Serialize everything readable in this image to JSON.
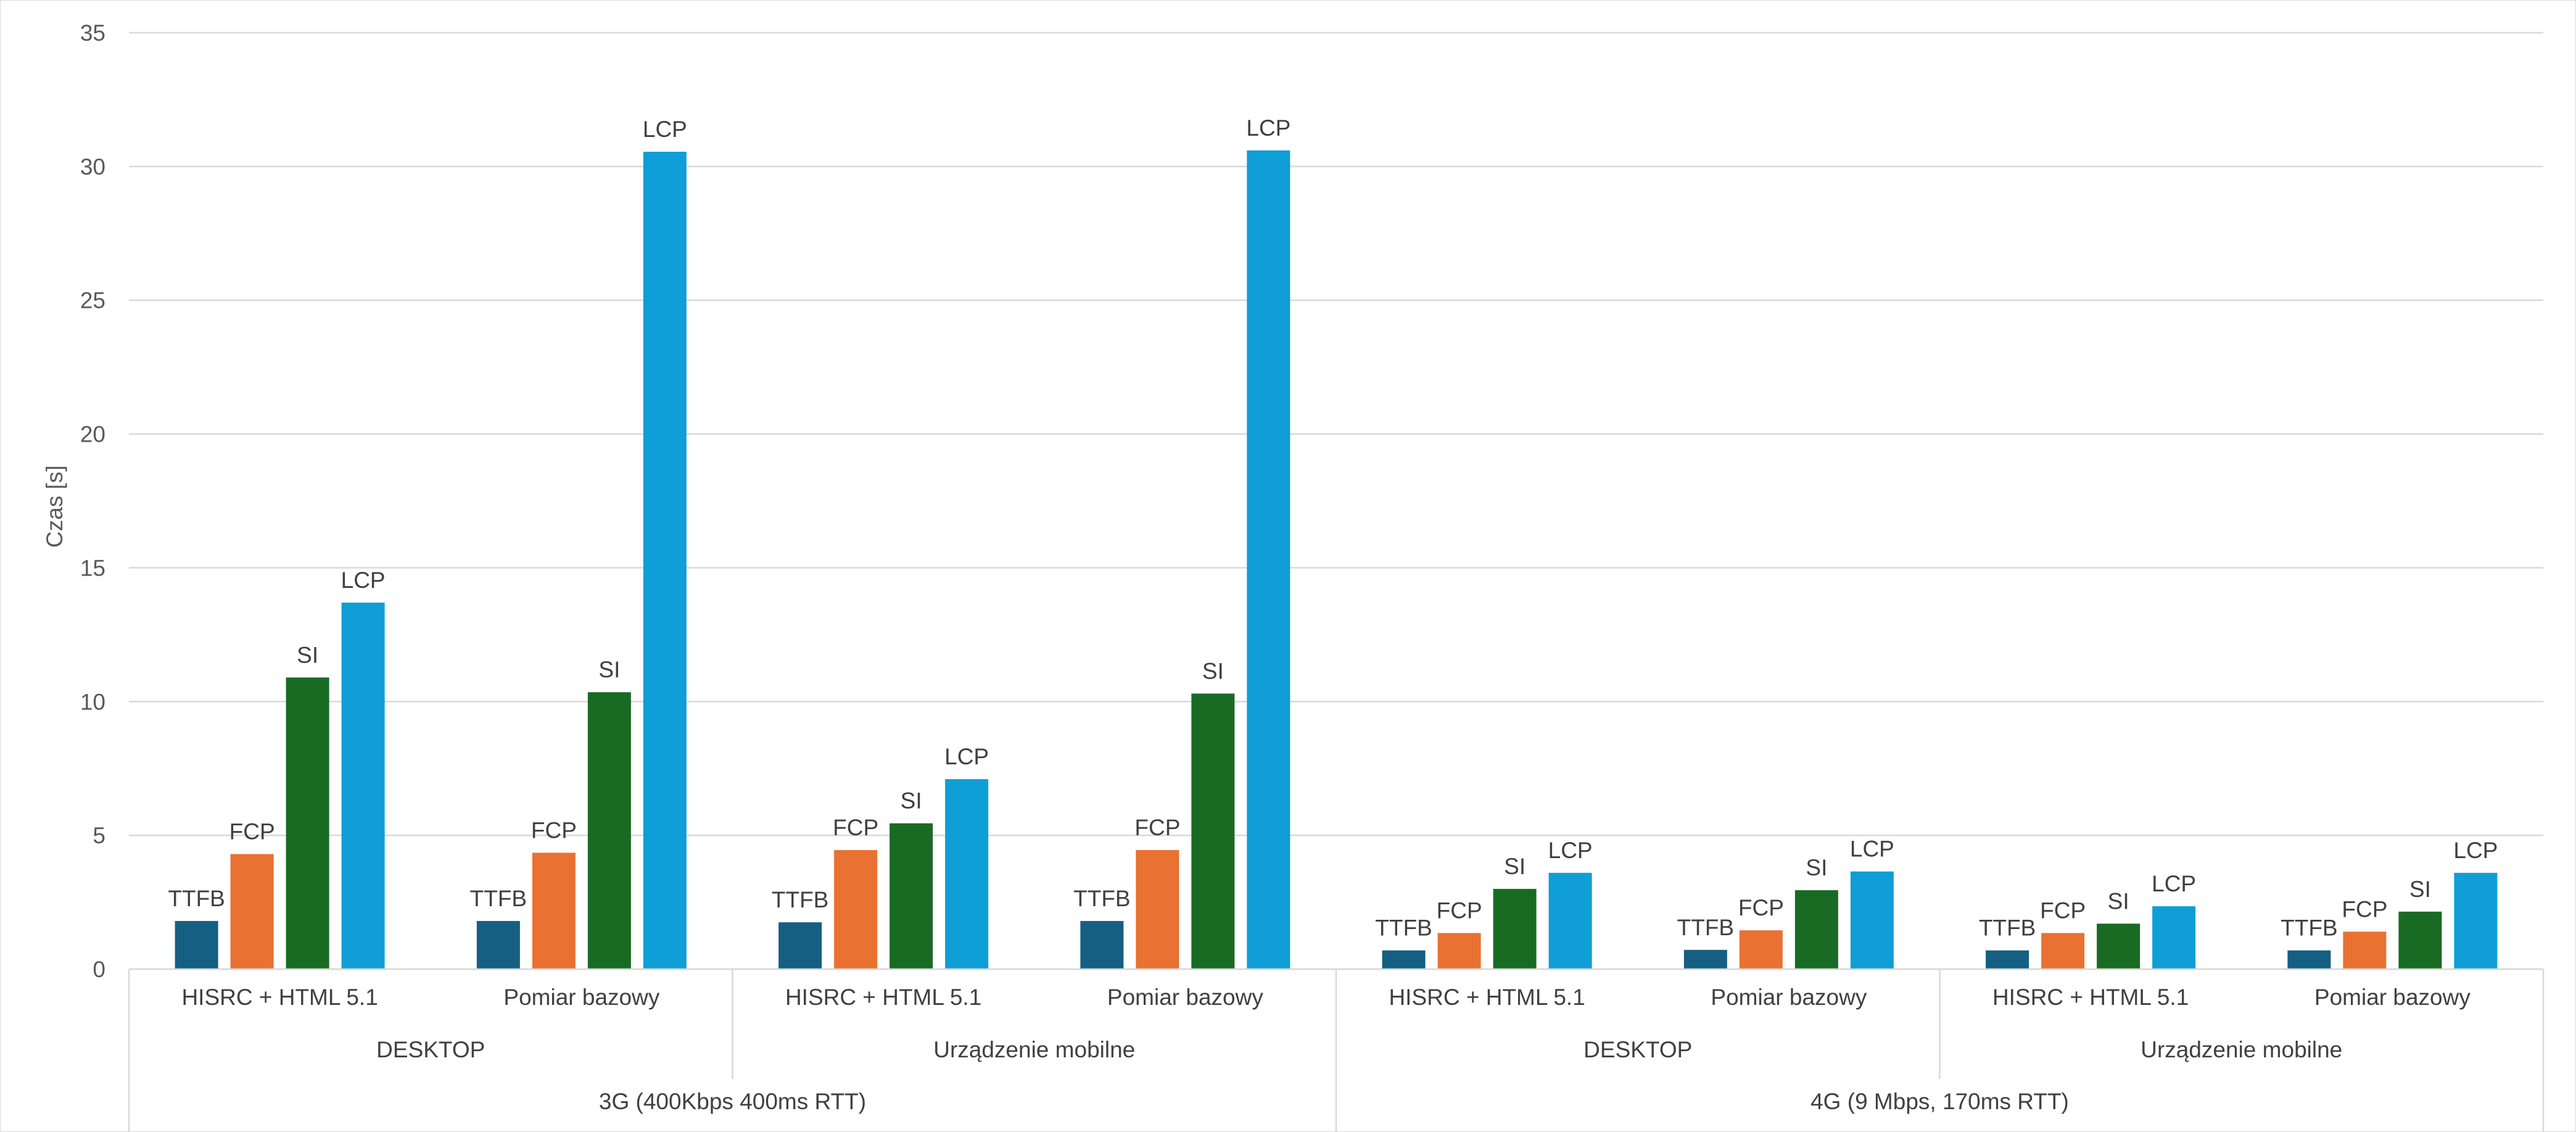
{
  "chart_data": {
    "type": "bar",
    "ylabel": "Czas [s]",
    "xlabel": "",
    "ylim": [
      0,
      35
    ],
    "yticks": [
      0,
      5,
      10,
      15,
      20,
      25,
      30,
      35
    ],
    "grid": true,
    "legend": "none",
    "series_names": [
      "TTFB",
      "FCP",
      "SI",
      "LCP"
    ],
    "series_colors": [
      "#155f82",
      "#e97132",
      "#196b24",
      "#0f9ed5"
    ],
    "groups": [
      {
        "network": "3G (400Kbps 400ms RTT)",
        "devices": [
          {
            "device": "DESKTOP",
            "categories": [
              {
                "label": "HISRC + HTML 5.1",
                "values": [
                  1.8,
                  4.3,
                  10.9,
                  13.7
                ]
              },
              {
                "label": "Pomiar bazowy",
                "values": [
                  1.8,
                  4.35,
                  10.35,
                  30.55
                ]
              }
            ]
          },
          {
            "device": "Urządzenie mobilne",
            "categories": [
              {
                "label": "HISRC + HTML 5.1",
                "values": [
                  1.75,
                  4.45,
                  5.45,
                  7.1
                ]
              },
              {
                "label": "Pomiar bazowy",
                "values": [
                  1.8,
                  4.45,
                  10.3,
                  30.6
                ]
              }
            ]
          }
        ]
      },
      {
        "network": "4G (9 Mbps, 170ms RTT)",
        "devices": [
          {
            "device": "DESKTOP",
            "categories": [
              {
                "label": "HISRC + HTML 5.1",
                "values": [
                  0.7,
                  1.35,
                  3.0,
                  3.6
                ]
              },
              {
                "label": "Pomiar bazowy",
                "values": [
                  0.72,
                  1.45,
                  2.95,
                  3.65
                ]
              }
            ]
          },
          {
            "device": "Urządzenie mobilne",
            "categories": [
              {
                "label": "HISRC + HTML 5.1",
                "values": [
                  0.7,
                  1.35,
                  1.7,
                  2.35
                ]
              },
              {
                "label": "Pomiar bazowy",
                "values": [
                  0.7,
                  1.4,
                  2.15,
                  3.6
                ]
              }
            ]
          }
        ]
      }
    ]
  }
}
